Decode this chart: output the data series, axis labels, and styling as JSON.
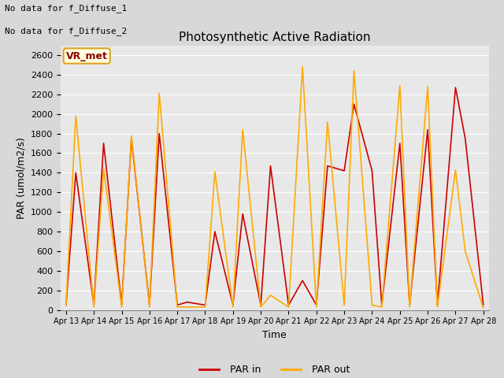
{
  "title": "Photosynthetic Active Radiation",
  "xlabel": "Time",
  "ylabel": "PAR (umol/m2/s)",
  "text_top_left_line1": "No data for f_Diffuse_1",
  "text_top_left_line2": "No data for f_Diffuse_2",
  "legend_box_label": "VR_met",
  "ylim": [
    0,
    2700
  ],
  "yticks": [
    0,
    200,
    400,
    600,
    800,
    1000,
    1200,
    1400,
    1600,
    1800,
    2000,
    2200,
    2400,
    2600
  ],
  "background_color": "#d8d8d8",
  "axes_bg_color": "#e8e8e8",
  "color_par_in": "#cc0000",
  "color_par_out": "#ffaa00",
  "xtick_labels": [
    "Apr 13",
    "Apr 14",
    "Apr 15",
    "Apr 16",
    "Apr 17",
    "Apr 18",
    "Apr 19",
    "Apr 20",
    "Apr 21",
    "Apr 22",
    "Apr 23",
    "Apr 24",
    "Apr 25",
    "Apr 26",
    "Apr 27",
    "Apr 28"
  ],
  "par_in_x": [
    0,
    0.35,
    1.0,
    1.35,
    2.0,
    2.35,
    3.0,
    3.35,
    4.0,
    4.35,
    5.0,
    5.35,
    6.0,
    6.35,
    7.0,
    7.35,
    8.0,
    8.5,
    9.0,
    9.4,
    10.0,
    10.35,
    11.0,
    11.35,
    12.0,
    12.35,
    13.0,
    13.35,
    14.0,
    14.35,
    15.0
  ],
  "par_in_y": [
    50,
    1400,
    50,
    1700,
    50,
    1750,
    50,
    1800,
    50,
    80,
    50,
    800,
    50,
    980,
    50,
    1470,
    50,
    300,
    50,
    1470,
    1420,
    2100,
    1420,
    50,
    1700,
    50,
    1840,
    50,
    2270,
    1750,
    50
  ],
  "par_out_x": [
    0,
    0.35,
    1.0,
    1.35,
    2.0,
    2.35,
    3.0,
    3.35,
    4.0,
    4.35,
    5.0,
    5.35,
    6.0,
    6.35,
    7.0,
    7.35,
    8.0,
    8.5,
    9.0,
    9.4,
    10.0,
    10.35,
    11.0,
    11.35,
    12.0,
    12.35,
    13.0,
    13.35,
    14.0,
    14.35,
    15.0
  ],
  "par_out_y": [
    50,
    1980,
    30,
    1440,
    30,
    1780,
    30,
    2210,
    30,
    30,
    30,
    1410,
    30,
    1840,
    30,
    150,
    30,
    2480,
    30,
    1920,
    50,
    2440,
    50,
    30,
    2290,
    30,
    2280,
    30,
    1430,
    600,
    20
  ]
}
